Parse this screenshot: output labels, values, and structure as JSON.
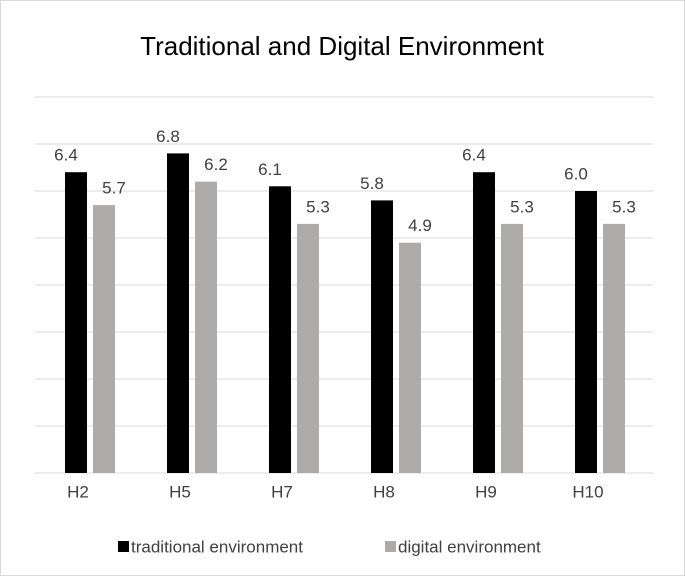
{
  "chart_data": {
    "type": "bar",
    "title": "Traditional and Digital Environment",
    "categories": [
      "H2",
      "H5",
      "H7",
      "H8",
      "H9",
      "H10"
    ],
    "series": [
      {
        "name": "traditional environment",
        "color": "#000000",
        "values": [
          6.4,
          6.8,
          6.1,
          5.8,
          6.4,
          6.0
        ],
        "value_labels": [
          "6.4",
          "6.8",
          "6.1",
          "5.8",
          "6.4",
          "6.0"
        ]
      },
      {
        "name": "digital environment",
        "color": "#aeabab",
        "values": [
          5.7,
          6.2,
          5.3,
          4.9,
          5.3,
          5.3
        ],
        "value_labels": [
          "5.7",
          "6.2",
          "5.3",
          "4.9",
          "5.3",
          "5.3"
        ]
      }
    ],
    "ylim": [
      0,
      8
    ],
    "yticks": [
      0,
      1,
      2,
      3,
      4,
      5,
      6,
      7,
      8
    ],
    "grid": true,
    "legend": "bottom"
  }
}
